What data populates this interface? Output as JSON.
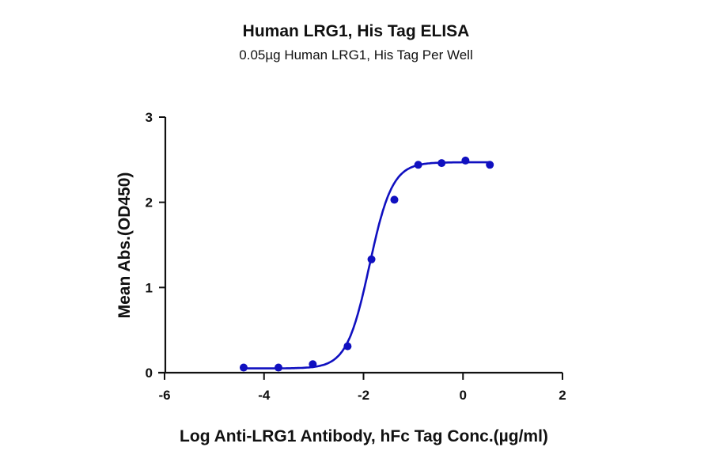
{
  "chart_data": {
    "type": "line",
    "title": "Human LRG1, His Tag ELISA",
    "subtitle": "0.05µg Human LRG1, His Tag Per Well",
    "xlabel": "Log Anti-LRG1 Antibody, hFc Tag Conc.(µg/ml)",
    "ylabel": "Mean Abs.(OD450)",
    "xlim": [
      -6,
      2
    ],
    "ylim": [
      0,
      3
    ],
    "xticks": [
      -6,
      -4,
      -2,
      0,
      2
    ],
    "yticks": [
      0,
      1,
      2,
      3
    ],
    "grid": false,
    "legend": null,
    "series": [
      {
        "name": "Human LRG1, His Tag",
        "color": "#1010c0",
        "marker": "circle",
        "fit": "4PL sigmoid",
        "x": [
          -4.41,
          -3.71,
          -3.02,
          -2.32,
          -1.84,
          -1.38,
          -0.9,
          -0.43,
          0.05,
          0.54
        ],
        "y": [
          0.06,
          0.06,
          0.1,
          0.31,
          1.33,
          2.03,
          2.44,
          2.46,
          2.49,
          2.44
        ]
      }
    ],
    "fit_params": {
      "bottom": 0.05,
      "top": 2.47,
      "logEC50": -1.88,
      "hill": 1.9
    }
  }
}
